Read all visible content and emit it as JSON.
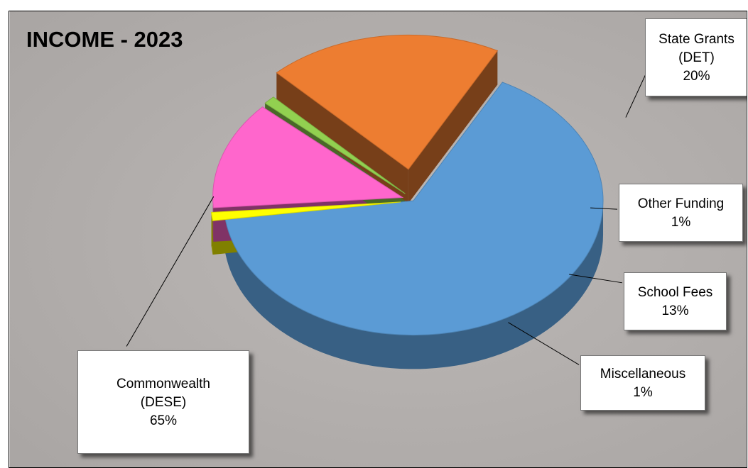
{
  "chart_data": {
    "type": "pie",
    "title": "INCOME - 2023",
    "slices": [
      {
        "name": "Commonwealth (DESE)",
        "name_lines": [
          "Commonwealth",
          "(DESE)"
        ],
        "value": 65,
        "label": "65%",
        "color": "#5b9bd5",
        "exploded": false
      },
      {
        "name": "Miscellaneous",
        "name_lines": [
          "Miscellaneous"
        ],
        "value": 1,
        "label": "1%",
        "color": "#ffff00",
        "exploded": true
      },
      {
        "name": "School Fees",
        "name_lines": [
          "School Fees"
        ],
        "value": 13,
        "label": "13%",
        "color": "#ff66cc",
        "exploded": true
      },
      {
        "name": "Other Funding",
        "name_lines": [
          "Other Funding"
        ],
        "value": 1,
        "label": "1%",
        "color": "#92d050",
        "exploded": true
      },
      {
        "name": "State Grants (DET)",
        "name_lines": [
          "State Grants",
          "(DET)"
        ],
        "value": 20,
        "label": "20%",
        "color": "#ed7d31",
        "exploded": true
      }
    ],
    "style": "3d-exploded",
    "legend": "none",
    "background_color": "#b0acaa"
  }
}
